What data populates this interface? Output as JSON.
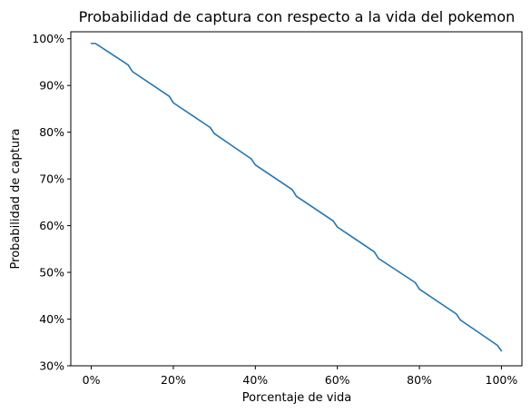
{
  "chart_data": {
    "type": "line",
    "title": "Probabilidad de captura con respecto a la vida del pokemon",
    "xlabel": "Porcentaje de vida",
    "ylabel": "Probabilidad de captura",
    "xlim": [
      -0.05,
      1.05
    ],
    "ylim": [
      0.3,
      1.015
    ],
    "grid": false,
    "legend": "none",
    "x_ticks": [
      {
        "value": 0.0,
        "label": "0%"
      },
      {
        "value": 0.2,
        "label": "20%"
      },
      {
        "value": 0.4,
        "label": "40%"
      },
      {
        "value": 0.6,
        "label": "60%"
      },
      {
        "value": 0.8,
        "label": "80%"
      },
      {
        "value": 1.0,
        "label": "100%"
      }
    ],
    "y_ticks": [
      {
        "value": 0.3,
        "label": "30%"
      },
      {
        "value": 0.4,
        "label": "40%"
      },
      {
        "value": 0.5,
        "label": "50%"
      },
      {
        "value": 0.6,
        "label": "60%"
      },
      {
        "value": 0.7,
        "label": "70%"
      },
      {
        "value": 0.8,
        "label": "80%"
      },
      {
        "value": 0.9,
        "label": "90%"
      },
      {
        "value": 1.0,
        "label": "100%"
      }
    ],
    "series": [
      {
        "color": "#1f77b4",
        "x": [
          0.0,
          0.01,
          0.09,
          0.1,
          0.19,
          0.2,
          0.29,
          0.3,
          0.39,
          0.4,
          0.49,
          0.5,
          0.59,
          0.6,
          0.69,
          0.7,
          0.79,
          0.8,
          0.89,
          0.9,
          0.99,
          1.0
        ],
        "y": [
          0.99,
          0.99,
          0.944,
          0.93,
          0.877,
          0.863,
          0.81,
          0.797,
          0.743,
          0.73,
          0.677,
          0.663,
          0.61,
          0.597,
          0.544,
          0.53,
          0.478,
          0.464,
          0.411,
          0.398,
          0.344,
          0.332
        ]
      }
    ]
  }
}
